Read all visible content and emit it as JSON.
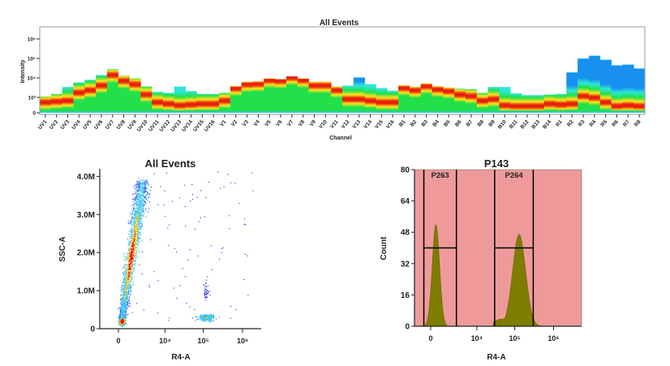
{
  "chart_data": [
    {
      "type": "heatmap",
      "title": "All Events",
      "xlabel": "Channel",
      "ylabel": "Intensity",
      "y_scale": "biexponential",
      "y_ticks": [
        "0",
        "10³",
        "10⁴",
        "10⁵",
        "10⁶"
      ],
      "categories": [
        "UV1",
        "UV2",
        "UV3",
        "UV4",
        "UV5",
        "UV6",
        "UV7",
        "UV8",
        "UV9",
        "UV10",
        "UV11",
        "UV12",
        "UV13",
        "UV14",
        "UV15",
        "UV16",
        "V1",
        "V2",
        "V3",
        "V4",
        "V5",
        "V6",
        "V7",
        "V8",
        "V9",
        "V10",
        "V11",
        "V12",
        "V13",
        "V14",
        "V15",
        "V16",
        "B1",
        "B2",
        "B3",
        "B4",
        "B5",
        "B6",
        "B7",
        "B8",
        "B9",
        "B10",
        "B11",
        "B12",
        "B13",
        "B14",
        "R1",
        "R2",
        "R3",
        "R4",
        "R5",
        "R6",
        "R7",
        "R8"
      ],
      "max_intensity": [
        1100,
        1500,
        3400,
        5800,
        8000,
        14000,
        28000,
        13000,
        9400,
        3600,
        1900,
        1700,
        3600,
        2100,
        1500,
        1500,
        1700,
        3800,
        6400,
        6800,
        9400,
        8800,
        12000,
        9400,
        6400,
        6400,
        3600,
        4000,
        10700,
        4800,
        3000,
        2200,
        4200,
        3500,
        5300,
        3800,
        3200,
        2800,
        2600,
        1700,
        3400,
        3400,
        1600,
        1300,
        1300,
        1400,
        1500,
        19500,
        100000,
        140000,
        87000,
        45000,
        49000,
        31000
      ],
      "peak_intensity": [
        600,
        650,
        700,
        1500,
        2000,
        3500,
        12000,
        6000,
        4000,
        1200,
        600,
        500,
        400,
        450,
        500,
        500,
        700,
        2500,
        4000,
        4200,
        6500,
        6000,
        9000,
        6500,
        3500,
        3500,
        2000,
        800,
        800,
        700,
        600,
        600,
        2600,
        2000,
        3200,
        2200,
        1800,
        1200,
        1000,
        700,
        800,
        400,
        350,
        350,
        350,
        500,
        450,
        500,
        1000,
        900,
        600,
        350,
        400,
        350
      ],
      "grid": false
    },
    {
      "type": "scatter",
      "title": "All Events",
      "xlabel": "R4-A",
      "ylabel": "SSC-A",
      "x_scale": "biexponential",
      "x_ticks": [
        "0",
        "10⁴",
        "10⁵",
        "10⁶"
      ],
      "y_ticks": [
        "0",
        "1.0M",
        "2.0M",
        "3.0M",
        "4.0M"
      ],
      "ylim": [
        0,
        4200000
      ],
      "populations": [
        {
          "center_x": 150,
          "center_y": 180000,
          "count": 700
        },
        {
          "center_x": 900,
          "center_y": 2000000,
          "count": 2200
        },
        {
          "center_x": 120000,
          "center_y": 300000,
          "count": 350
        },
        {
          "center_x": 110000,
          "center_y": 1000000,
          "count": 45
        },
        {
          "center_x": 20000,
          "center_y": 2000000,
          "count": 90
        }
      ],
      "grid": false
    },
    {
      "type": "area",
      "title": "P143",
      "xlabel": "R4-A",
      "ylabel": "Count",
      "x_scale": "biexponential",
      "x_ticks": [
        "0",
        "10⁴",
        "10⁵",
        "10⁶"
      ],
      "y_ticks": [
        "0",
        "16",
        "32",
        "48",
        "64",
        "80"
      ],
      "ylim": [
        0,
        80
      ],
      "peaks": [
        {
          "center": 250,
          "height": 52
        },
        {
          "center": 130000,
          "height": 47
        }
      ],
      "gates": [
        {
          "name": "P263",
          "from": -350,
          "to": 2500,
          "level": 40
        },
        {
          "name": "P264",
          "from": 30000,
          "to": 300000,
          "level": 40
        }
      ],
      "background_color": "#ee9a9a",
      "fill_color": "#7f7d00",
      "grid": false
    }
  ],
  "colors": {
    "heat_high": "#e8200c",
    "heat_mid": "#ffe51a",
    "heat_low": "#22e04a",
    "cyan": "#2ee6d6",
    "blue": "#1890f0"
  }
}
